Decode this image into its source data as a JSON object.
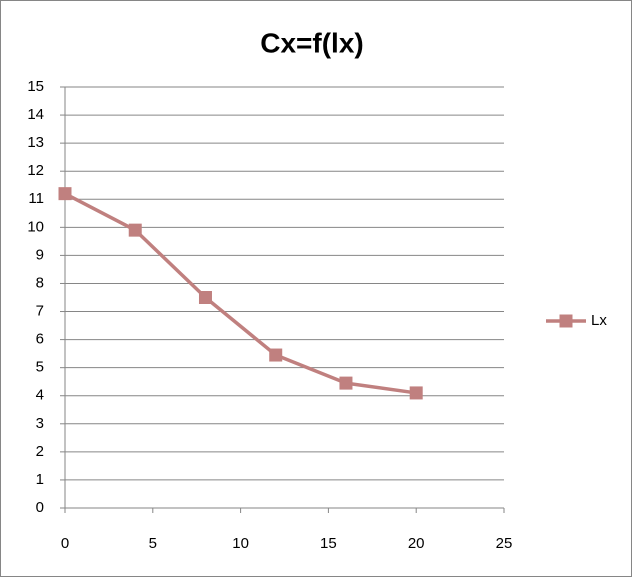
{
  "chart_data": {
    "type": "line",
    "title": "Cx=f(lx)",
    "x": [
      0,
      4,
      8,
      12,
      16,
      20
    ],
    "series": [
      {
        "name": "Lx",
        "color": "#c0807f",
        "values": [
          11.2,
          9.9,
          7.5,
          5.45,
          4.45,
          4.1
        ]
      }
    ],
    "xlim": [
      0,
      25
    ],
    "xticks": [
      0,
      5,
      10,
      15,
      20,
      25
    ],
    "ylim": [
      0,
      15
    ],
    "yticks": [
      0,
      1,
      2,
      3,
      4,
      5,
      6,
      7,
      8,
      9,
      10,
      11,
      12,
      13,
      14,
      15
    ],
    "grid": true,
    "legend": "right"
  }
}
